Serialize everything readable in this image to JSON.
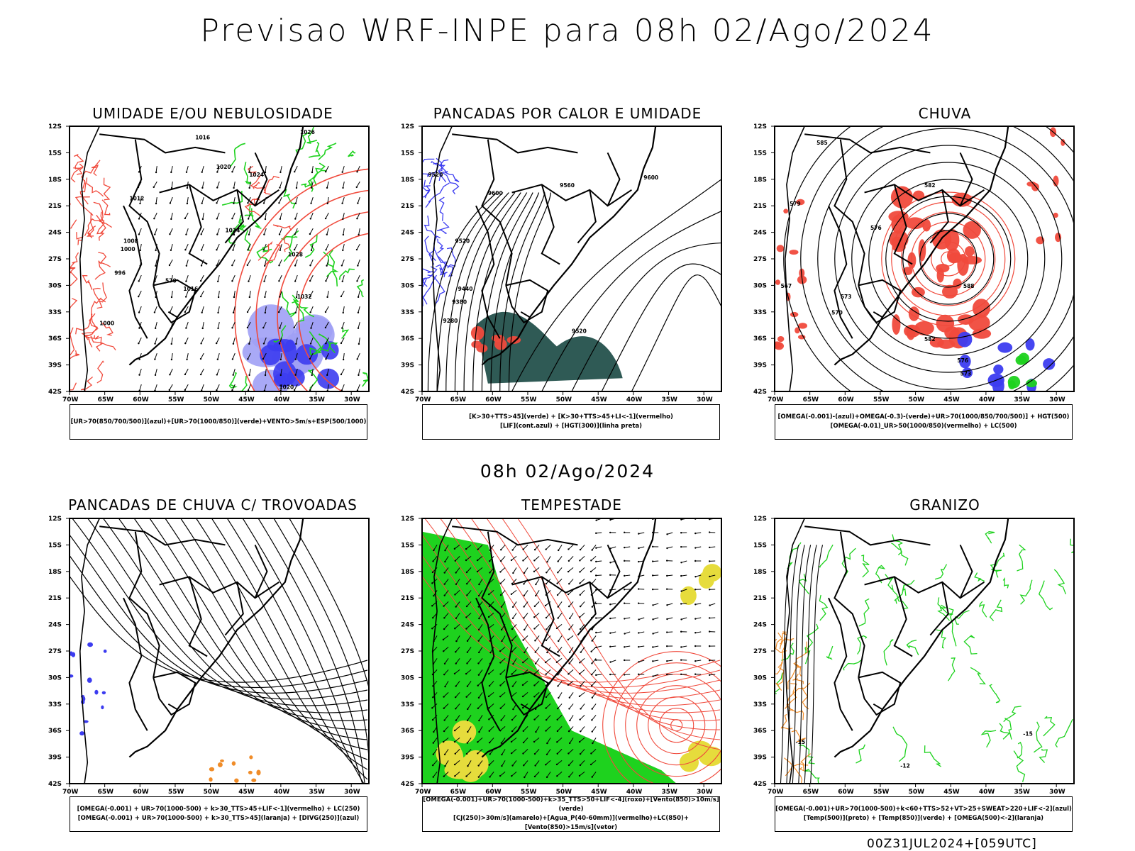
{
  "title": "Previsao WRF-INPE  para 08h 02/Ago/2024",
  "subtitle": "08h 02/Ago/2024",
  "run_stamp": "00Z31JUL2024+[059UTC]",
  "lat_ticks": [
    "12S",
    "15S",
    "18S",
    "21S",
    "24S",
    "27S",
    "30S",
    "33S",
    "36S",
    "39S",
    "42S"
  ],
  "lon_ticks": [
    "70W",
    "65W",
    "60W",
    "55W",
    "50W",
    "45W",
    "40W",
    "35W",
    "30W"
  ],
  "colors": {
    "red": "#f04a3c",
    "green": "#1ed21e",
    "blue": "#3c3cf0",
    "teal": "#2f5a55",
    "yellow": "#e6dc3c",
    "orange": "#f08c28",
    "lightblue": "#a0a0f5"
  },
  "panels": [
    {
      "title": "UMIDADE E/OU NEBULOSIDADE",
      "legend": [
        "[UR>70(850/700/500)](azul)+[UR>70(1000/850)](verde)+VENTO>5m/s+ESP(500/1000)"
      ],
      "contour_labels": [
        "1016",
        "1020",
        "1024",
        "1026",
        "1012",
        "1008",
        "1000",
        "996",
        "1016",
        "1028",
        "1032",
        "1020",
        "1000",
        "1024",
        "570"
      ]
    },
    {
      "title": "PANCADAS POR CALOR E UMIDADE",
      "legend": [
        "[K>30+TTS>45](verde) + [K>30+TTS>45+LI<-1](vermelho)",
        "[LIF](cont.azul) + [HGT(300)](linha preta)"
      ],
      "contour_labels": [
        "9520",
        "9600",
        "9600",
        "9560",
        "9520",
        "9440",
        "9380",
        "9280",
        "9520"
      ]
    },
    {
      "title": "CHUVA",
      "legend": [
        "[OMEGA(-0.001)-(azul)+OMEGA(-0.3)-(verde)+UR>70(1000/850/700/500)] + HGT(500)",
        "[OMEGA(-0.01)_UR>50(1000/850)(vermelho) + LC(500)"
      ],
      "contour_labels": [
        "585",
        "582",
        "579",
        "576",
        "573",
        "570",
        "567",
        "588",
        "582",
        "576",
        "573"
      ]
    },
    {
      "title": "PANCADAS DE CHUVA C/ TROVOADAS",
      "legend": [
        "[OMEGA(-0.001) + UR>70(1000-500) + k>30_TTS>45+LIF<-1](vermelho) + LC(250)",
        "[OMEGA(-0.001) + UR>70(1000-500) + k>30_TTS>45](laranja) + [DIVG(250)](azul)"
      ],
      "contour_labels": []
    },
    {
      "title": "TEMPESTADE",
      "legend": [
        "[OMEGA(-0.001)+UR>70(1000-500)+k>35_TTS>50+LIF<-4](roxo)+[Vento(850)>10m/s](verde)",
        "[CJ(250)>30m/s](amarelo)+[Agua_P(40-60mm)](vermelho)+LC(850)+[Vento(850)>15m/s](vetor)"
      ],
      "contour_labels": []
    },
    {
      "title": "GRANIZO",
      "legend": [
        "[OMEGA(-0.001)+UR>70(1000-500)+k<60+TTS>52+VT>25+SWEAT>220+LIF<-2](azul)",
        "[Temp(500)](preto) + [Temp(850)](verde) + [OMEGA(500)<-2](laranja)"
      ],
      "contour_labels": [
        "-15",
        "-15",
        "-12"
      ]
    }
  ]
}
